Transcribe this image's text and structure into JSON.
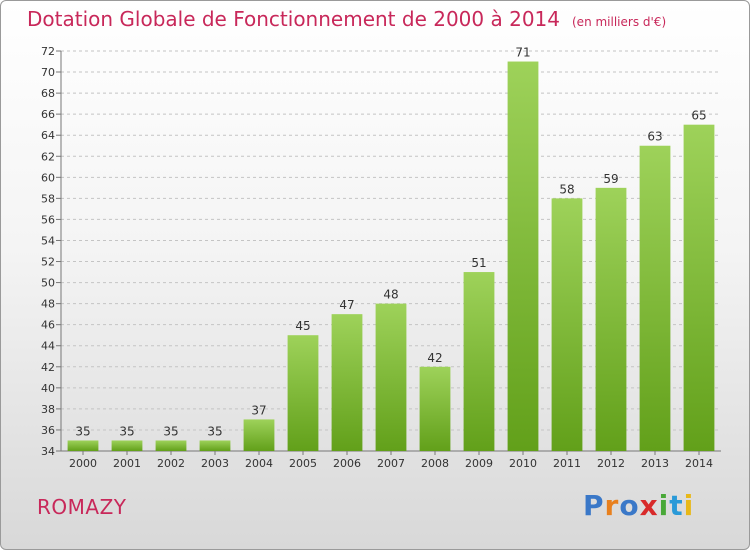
{
  "header": {
    "title": "Dotation Globale de Fonctionnement de 2000 à 2014",
    "subtitle": "(en milliers d'€)"
  },
  "municipality": "ROMAZY",
  "logo": "Proxiti",
  "colors": {
    "title": "#c8285a",
    "bar_light": "#9ed25a",
    "bar_dark": "#62a01a"
  },
  "chart_data": {
    "type": "bar",
    "title": "Dotation Globale de Fonctionnement de 2000 à 2014",
    "subtitle": "(en milliers d'€)",
    "categories": [
      "2000",
      "2001",
      "2002",
      "2003",
      "2004",
      "2005",
      "2006",
      "2007",
      "2008",
      "2009",
      "2010",
      "2011",
      "2012",
      "2013",
      "2014"
    ],
    "values": [
      35,
      35,
      35,
      35,
      37,
      45,
      47,
      48,
      42,
      51,
      71,
      58,
      59,
      63,
      65
    ],
    "ylim": [
      34,
      72
    ],
    "yticks": [
      34,
      36,
      38,
      40,
      42,
      44,
      46,
      48,
      50,
      52,
      54,
      56,
      58,
      60,
      62,
      64,
      66,
      68,
      70,
      72
    ],
    "grid": true
  }
}
